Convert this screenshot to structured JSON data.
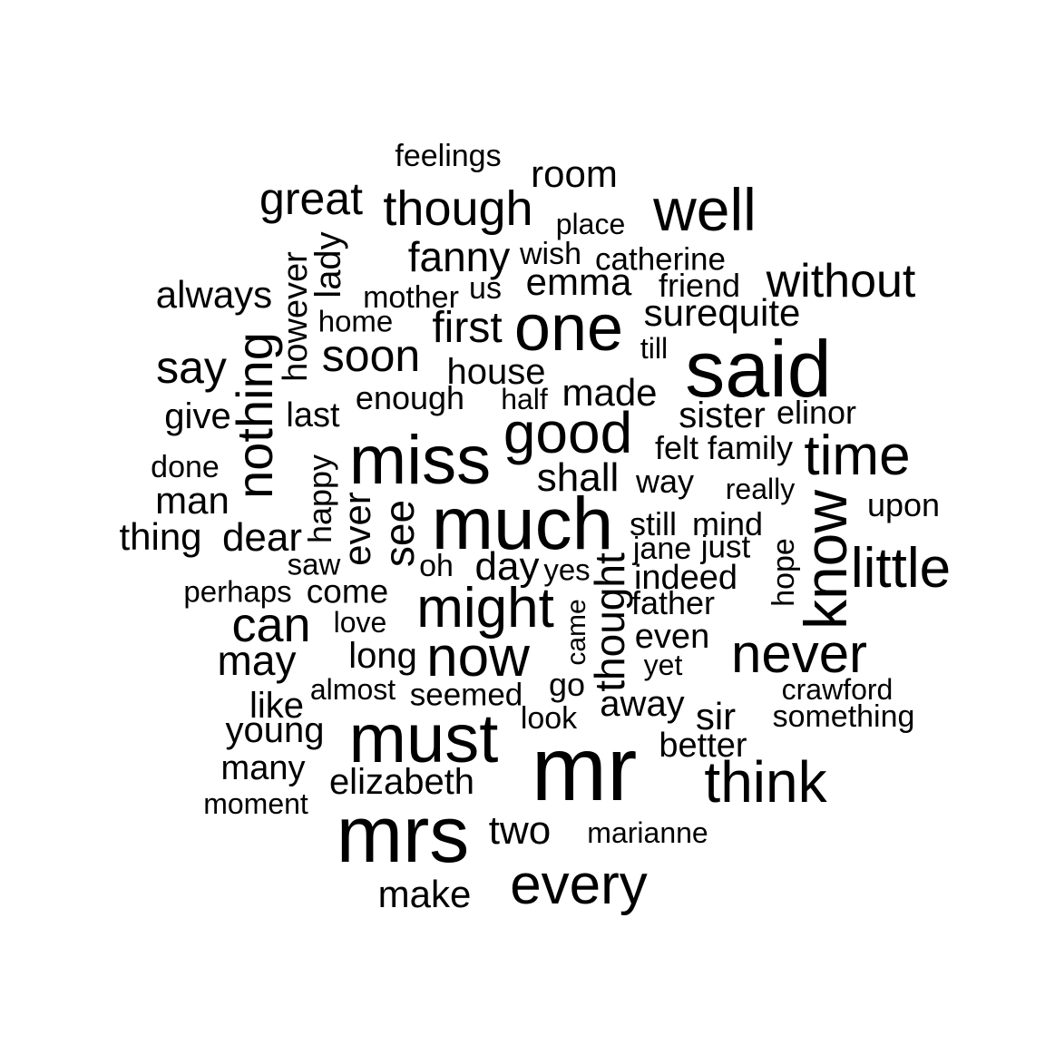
{
  "words": [
    "feelings",
    "room",
    "great",
    "though",
    "well",
    "place",
    "lady",
    "however",
    "fanny",
    "wish",
    "catherine",
    "without",
    "always",
    "mother",
    "us",
    "emma",
    "friend",
    "home",
    "first",
    "one",
    "surequite",
    "nothing",
    "soon",
    "till",
    "say",
    "house",
    "said",
    "enough",
    "half",
    "made",
    "give",
    "last",
    "sister",
    "elinor",
    "good",
    "miss",
    "felt",
    "family",
    "time",
    "done",
    "happy",
    "shall",
    "way",
    "really",
    "man",
    "ever",
    "see",
    "upon",
    "know",
    "much",
    "still",
    "mind",
    "thing",
    "dear",
    "jane",
    "just",
    "hope",
    "saw",
    "oh",
    "day",
    "yes",
    "thought",
    "little",
    "indeed",
    "perhaps",
    "come",
    "might",
    "came",
    "father",
    "can",
    "love",
    "even",
    "may",
    "long",
    "now",
    "never",
    "yet",
    "almost",
    "go",
    "crawford",
    "seemed",
    "like",
    "away",
    "sir",
    "look",
    "something",
    "young",
    "must",
    "better",
    "mr",
    "many",
    "think",
    "elizabeth",
    "moment",
    "mrs",
    "two",
    "marianne",
    "every",
    "make"
  ],
  "text_color": "#000000",
  "background_color": "#ffffff"
}
